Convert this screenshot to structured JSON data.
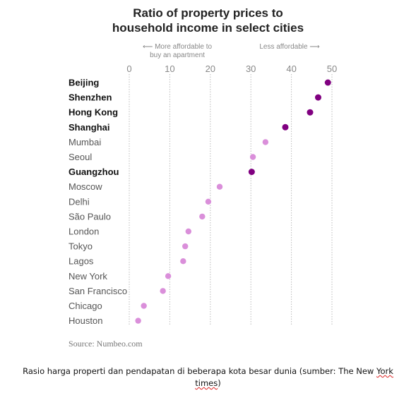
{
  "chart_data": {
    "type": "scatter",
    "title": [
      "Ratio of property prices to",
      "household income in select cities"
    ],
    "annotation_left": [
      "⟵ More affordable to",
      "buy an apartment"
    ],
    "annotation_right": "Less affordable ⟶",
    "x_ticks": [
      "0",
      "10",
      "20",
      "30",
      "40",
      "50"
    ],
    "xlim": [
      0,
      50
    ],
    "grid": "vertical",
    "categories": [
      "Beijing",
      "Shenzhen",
      "Hong Kong",
      "Shanghai",
      "Mumbai",
      "Seoul",
      "Guangzhou",
      "Moscow",
      "Delhi",
      "São Paulo",
      "London",
      "Tokyo",
      "Lagos",
      "New York",
      "San Francisco",
      "Chicago",
      "Houston"
    ],
    "values": [
      49,
      46.6,
      44.6,
      38.5,
      33.6,
      30.5,
      30.2,
      22.3,
      19.5,
      18.0,
      14.6,
      13.8,
      13.3,
      9.6,
      8.3,
      3.6,
      2.2
    ],
    "highlighted": [
      true,
      true,
      true,
      true,
      false,
      false,
      true,
      false,
      false,
      false,
      false,
      false,
      false,
      false,
      false,
      false,
      false
    ],
    "colors": {
      "highlight": "#800080",
      "normal": "#da8fda",
      "grid": "#bbbbbb"
    }
  },
  "source": "Source: Numbeo.com",
  "caption": {
    "line1_before": "Rasio harga properti dan pendapatan di beberapa kota besar dunia (sumber: The New ",
    "line1_underlined": "York",
    "line2_underlined": "times",
    "line2_after": ")"
  }
}
